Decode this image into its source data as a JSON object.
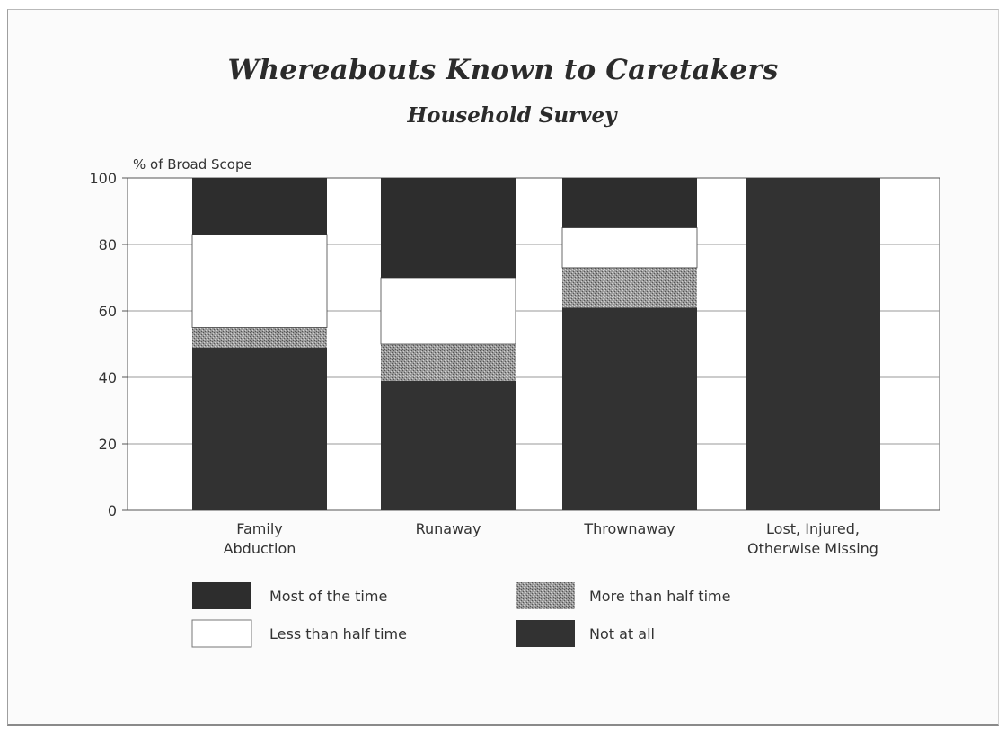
{
  "chart_data": {
    "type": "bar",
    "stacked": true,
    "title": "Whereabouts Known to Caretakers",
    "subtitle": "Household Survey",
    "ylabel": "% of Broad Scope",
    "xlabel": "",
    "ylim": [
      0,
      100
    ],
    "yticks": [
      "100",
      "80",
      "60",
      "40",
      "20",
      "0"
    ],
    "ytick_values": [
      100,
      80,
      60,
      40,
      20,
      0
    ],
    "grid": true,
    "legend_position": "bottom",
    "categories": [
      [
        "Family",
        "Abduction"
      ],
      [
        "Runaway"
      ],
      [
        "Thrownaway"
      ],
      [
        "Lost, Injured,",
        "Otherwise Missing"
      ]
    ],
    "series": [
      {
        "name": "Not at all",
        "values": [
          49,
          39,
          61,
          100
        ]
      },
      {
        "name": "More than half time",
        "values": [
          6,
          11,
          12,
          0
        ]
      },
      {
        "name": "Less than half time",
        "values": [
          28,
          20,
          12,
          0
        ]
      },
      {
        "name": "Most of the time",
        "values": [
          17,
          30,
          15,
          0
        ]
      }
    ],
    "legend": [
      {
        "name": "Most of the time"
      },
      {
        "name": "More than half time"
      },
      {
        "name": "Less than half time"
      },
      {
        "name": "Not at all"
      }
    ]
  },
  "colors": {
    "Most of the time": "#2d2d2d",
    "More than half time": "#8a8a8a",
    "Less than half time": "#ffffff",
    "Not at all": "#323232",
    "grid": "#9a9a9a",
    "axis": "#555555"
  }
}
